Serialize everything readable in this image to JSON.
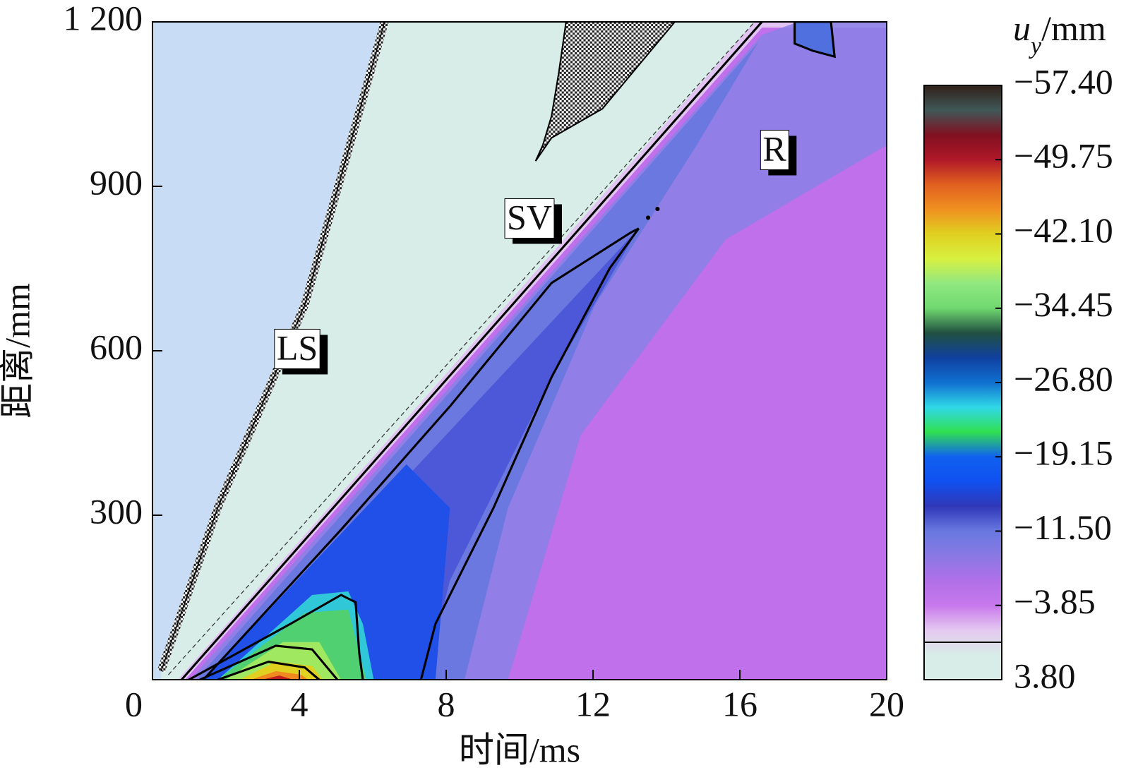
{
  "chart_data": {
    "type": "contour",
    "x_label": "时间/ms",
    "y_label": "距离/mm",
    "xlim": [
      0,
      20
    ],
    "ylim": [
      0,
      1200
    ],
    "xticks": [
      4,
      8,
      12,
      16,
      20
    ],
    "yticks": [
      0,
      300,
      600,
      {
        "value": 1200,
        "label": "1 200"
      },
      900
    ],
    "colorbar": {
      "label_symbol": "u",
      "label_subscript": "y",
      "label_unit": "/mm",
      "clim": [
        3.8,
        -57.4
      ],
      "ticks": [
        {
          "value": -57.4,
          "label": "−57.40"
        },
        {
          "value": -49.75,
          "label": "−49.75"
        },
        {
          "value": -42.1,
          "label": "−42.10"
        },
        {
          "value": -34.45,
          "label": "−34.45"
        },
        {
          "value": -26.8,
          "label": "−26.80"
        },
        {
          "value": -19.15,
          "label": "−19.15"
        },
        {
          "value": -11.5,
          "label": "−11.50"
        },
        {
          "value": -3.85,
          "label": "−3.85"
        },
        {
          "value": 3.8,
          "label": "3.80"
        }
      ],
      "colors": [
        "#d8ece8",
        "#d8ece8",
        "#e4c8f0",
        "#c878ec",
        "#b070e8",
        "#8a78e4",
        "#6878e0",
        "#3038b8",
        "#1050f0",
        "#1060f0",
        "#30e050",
        "#30d8e8",
        "#1070d0",
        "#1040a0",
        "#205040",
        "#70d870",
        "#90e880",
        "#d8f040",
        "#e0d020",
        "#f09020",
        "#e06020",
        "#b01828",
        "#801020",
        "#405858",
        "#302018"
      ]
    },
    "annotations": [
      "LS",
      "SV",
      "R"
    ]
  }
}
